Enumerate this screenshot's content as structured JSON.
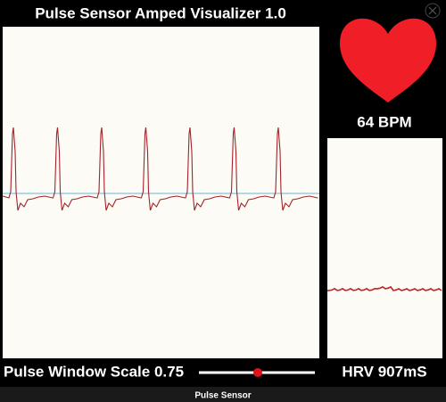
{
  "header": {
    "title": "Pulse Sensor Amped Visualizer 1.0"
  },
  "readouts": {
    "bpm": "64 BPM",
    "hrv": "HRV 907mS"
  },
  "controls": {
    "scale_label": "Pulse Window Scale 0.75"
  },
  "footer": {
    "label": "Pulse Sensor"
  }
}
